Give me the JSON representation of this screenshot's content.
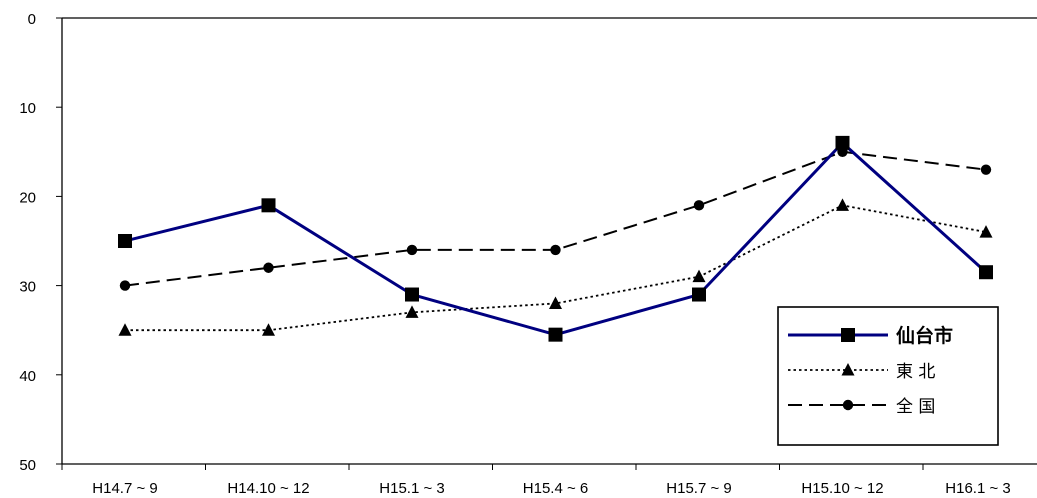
{
  "chart_data": {
    "type": "line",
    "title": "",
    "xlabel": "",
    "ylabel": "",
    "y_inverted": true,
    "ylim": [
      0,
      50
    ],
    "yticks": [
      0,
      10,
      20,
      30,
      40,
      50
    ],
    "categories": [
      "H14.7 ~ 9",
      "H14.10 ~ 12",
      "H15.1 ~ 3",
      "H15.4 ~ 6",
      "H15.7 ~ 9",
      "H15.10 ~ 12",
      "H16.1 ~ 3"
    ],
    "grid": false,
    "legend_position": "bottom-right",
    "series": [
      {
        "name": "仙台市",
        "values": [
          25,
          21,
          31,
          35.5,
          31,
          14,
          28.5
        ],
        "color": "#000080",
        "line_style": "solid",
        "marker": "square",
        "bold_label": true
      },
      {
        "name": "東 北",
        "values": [
          35,
          35,
          33,
          32,
          29,
          21,
          24
        ],
        "color": "#000000",
        "line_style": "dotted",
        "marker": "triangle",
        "bold_label": false
      },
      {
        "name": "全 国",
        "values": [
          30,
          28,
          26,
          26,
          21,
          15,
          17
        ],
        "color": "#000000",
        "line_style": "dashed",
        "marker": "circle",
        "bold_label": false
      }
    ]
  }
}
